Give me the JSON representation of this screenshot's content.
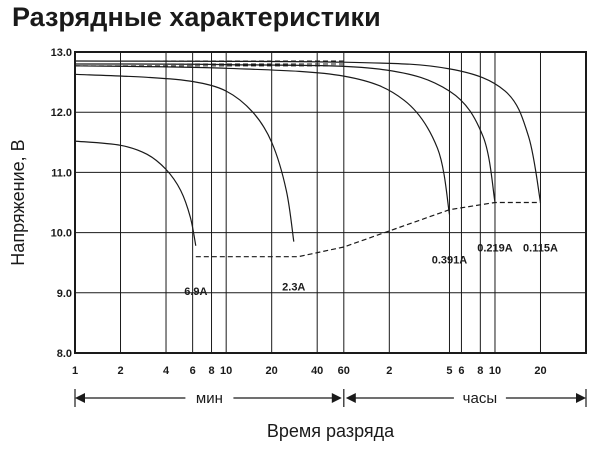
{
  "chart_data": {
    "type": "line",
    "title": "Разрядные характеристики",
    "xlabel": "Время разряда",
    "ylabel": "Напряжение, В",
    "x_scale": "log",
    "x_unit": "minutes",
    "xlim": [
      1,
      2400
    ],
    "ylim": [
      8.0,
      13.0
    ],
    "grid": true,
    "y_ticks": [
      "8.0",
      "9.0",
      "10.0",
      "11.0",
      "12.0",
      "13.0"
    ],
    "x_ticks_min": [
      {
        "label": "1",
        "minutes": 1
      },
      {
        "label": "2",
        "minutes": 2
      },
      {
        "label": "4",
        "minutes": 4
      },
      {
        "label": "6",
        "minutes": 6
      },
      {
        "label": "8",
        "minutes": 8
      },
      {
        "label": "10",
        "minutes": 10
      },
      {
        "label": "20",
        "minutes": 20
      },
      {
        "label": "40",
        "minutes": 40
      },
      {
        "label": "60",
        "minutes": 60
      }
    ],
    "x_ticks_hours": [
      {
        "label": "2",
        "minutes": 120
      },
      {
        "label": "5",
        "minutes": 300
      },
      {
        "label": "6",
        "minutes": 360
      },
      {
        "label": "8",
        "minutes": 480
      },
      {
        "label": "10",
        "minutes": 600
      },
      {
        "label": "20",
        "minutes": 1200
      }
    ],
    "range_labels": {
      "minutes": "мин",
      "hours": "часы"
    },
    "series": [
      {
        "name": "6.9A",
        "points": [
          [
            1,
            11.52
          ],
          [
            2,
            11.45
          ],
          [
            3,
            11.3
          ],
          [
            4,
            11.05
          ],
          [
            5,
            10.7
          ],
          [
            5.8,
            10.25
          ],
          [
            6.3,
            9.78
          ]
        ]
      },
      {
        "name": "2.3A",
        "points": [
          [
            1,
            12.63
          ],
          [
            3,
            12.58
          ],
          [
            6,
            12.51
          ],
          [
            10,
            12.35
          ],
          [
            15,
            12.0
          ],
          [
            20,
            11.5
          ],
          [
            25,
            10.7
          ],
          [
            28,
            9.85
          ]
        ]
      },
      {
        "name": "0.391A",
        "points": [
          [
            1,
            12.77
          ],
          [
            10,
            12.73
          ],
          [
            60,
            12.6
          ],
          [
            150,
            12.2
          ],
          [
            250,
            11.4
          ],
          [
            300,
            10.3
          ]
        ]
      },
      {
        "name": "0.219A",
        "points": [
          [
            1,
            12.8
          ],
          [
            10,
            12.79
          ],
          [
            100,
            12.72
          ],
          [
            300,
            12.35
          ],
          [
            500,
            11.6
          ],
          [
            600,
            10.5
          ]
        ]
      },
      {
        "name": "0.115A",
        "points": [
          [
            1,
            12.85
          ],
          [
            60,
            12.83
          ],
          [
            300,
            12.72
          ],
          [
            700,
            12.35
          ],
          [
            1000,
            11.6
          ],
          [
            1200,
            10.5
          ]
        ]
      }
    ],
    "cutoff_line": {
      "points": [
        [
          6.3,
          9.6
        ],
        [
          30,
          9.6
        ],
        [
          60,
          9.76
        ],
        [
          300,
          10.38
        ],
        [
          600,
          10.5
        ],
        [
          1200,
          10.5
        ]
      ]
    }
  }
}
